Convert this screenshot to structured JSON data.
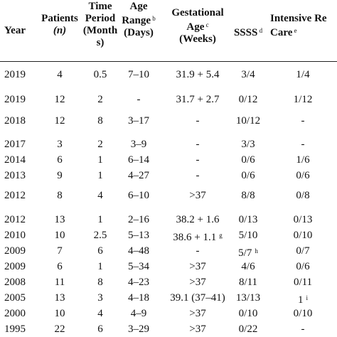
{
  "headers": [
    {
      "lines": [
        "Year"
      ],
      "sup": ""
    },
    {
      "lines": [
        "Patients",
        "(n)"
      ],
      "sup": "",
      "italic_line": 1
    },
    {
      "lines": [
        "Time",
        "Period",
        "(Month",
        "s)"
      ],
      "sup": ""
    },
    {
      "lines": [
        "Age",
        "Range",
        "(Days)"
      ],
      "sup": "b",
      "sup_line": 1
    },
    {
      "lines": [
        "Gestational",
        "Age",
        "(Weeks)"
      ],
      "sup": "c",
      "sup_line": 1
    },
    {
      "lines": [
        "SSSS"
      ],
      "sup": "d",
      "sup_line": 0
    },
    {
      "lines": [
        "Intensive Re",
        "Care"
      ],
      "sup": "e",
      "sup_line": 1
    }
  ],
  "rows": [
    {
      "year": "2019",
      "patients": "4",
      "time": "0.5",
      "age": "7–10",
      "gest": "31.9 + 5.4",
      "gest_sup": "",
      "ssss": "3/4",
      "ssss_sup": "",
      "icu": "1/4",
      "icu_sup": ""
    },
    {
      "year": "2019",
      "patients": "12",
      "time": "2",
      "age": "-",
      "gest": "31.7 + 2.7",
      "gest_sup": "",
      "ssss": "0/12",
      "ssss_sup": "",
      "icu": "1/12",
      "icu_sup": ""
    },
    {
      "year": "2018",
      "patients": "12",
      "time": "8",
      "age": "3–17",
      "gest": "-",
      "gest_sup": "",
      "ssss": "10/12",
      "ssss_sup": "",
      "icu": "-",
      "icu_sup": ""
    },
    {
      "year": "2017",
      "patients": "3",
      "time": "2",
      "age": "3–9",
      "gest": "-",
      "gest_sup": "",
      "ssss": "3/3",
      "ssss_sup": "",
      "icu": "-",
      "icu_sup": ""
    },
    {
      "year": "2014",
      "patients": "6",
      "time": "1",
      "age": "6–14",
      "gest": "-",
      "gest_sup": "",
      "ssss": "0/6",
      "ssss_sup": "",
      "icu": "1/6",
      "icu_sup": ""
    },
    {
      "year": "2013",
      "patients": "9",
      "time": "1",
      "age": "4–27",
      "gest": "-",
      "gest_sup": "",
      "ssss": "0/6",
      "ssss_sup": "",
      "icu": "0/6",
      "icu_sup": ""
    },
    {
      "year": "2012",
      "patients": "8",
      "time": "4",
      "age": "6–10",
      "gest": ">37",
      "gest_sup": "",
      "ssss": "8/8",
      "ssss_sup": "",
      "icu": "0/8",
      "icu_sup": ""
    },
    {
      "year": "2012",
      "patients": "13",
      "time": "1",
      "age": "2–16",
      "gest": "38.2 + 1.6",
      "gest_sup": "",
      "ssss": "0/13",
      "ssss_sup": "",
      "icu": "0/13",
      "icu_sup": ""
    },
    {
      "year": "2010",
      "patients": "10",
      "time": "2.5",
      "age": "5–13",
      "gest": "38.6 + 1.1",
      "gest_sup": "g",
      "ssss": "5/10",
      "ssss_sup": "",
      "icu": "0/10",
      "icu_sup": ""
    },
    {
      "year": "2009",
      "patients": "7",
      "time": "6",
      "age": "4–48",
      "gest": "-",
      "gest_sup": "",
      "ssss": "5/7",
      "ssss_sup": "h",
      "icu": "0/7",
      "icu_sup": ""
    },
    {
      "year": "2009",
      "patients": "6",
      "time": "1",
      "age": "5–34",
      "gest": ">37",
      "gest_sup": "",
      "ssss": "4/6",
      "ssss_sup": "",
      "icu": "0/6",
      "icu_sup": ""
    },
    {
      "year": "2008",
      "patients": "11",
      "time": "8",
      "age": "4–23",
      "gest": ">37",
      "gest_sup": "",
      "ssss": "8/11",
      "ssss_sup": "",
      "icu": "0/11",
      "icu_sup": ""
    },
    {
      "year": "2005",
      "patients": "13",
      "time": "3",
      "age": "4–18",
      "gest": "39.1 (37–41)",
      "gest_sup": "",
      "ssss": "13/13",
      "ssss_sup": "",
      "icu": "1",
      "icu_sup": "i"
    },
    {
      "year": "2000",
      "patients": "10",
      "time": "4",
      "age": "4–9",
      "gest": ">37",
      "gest_sup": "",
      "ssss": "0/10",
      "ssss_sup": "",
      "icu": "0/10",
      "icu_sup": ""
    },
    {
      "year": "1995",
      "patients": "22",
      "time": "6",
      "age": "3–29",
      "gest": ">37",
      "gest_sup": "",
      "ssss": "0/22",
      "ssss_sup": "",
      "icu": "-",
      "icu_sup": ""
    }
  ]
}
